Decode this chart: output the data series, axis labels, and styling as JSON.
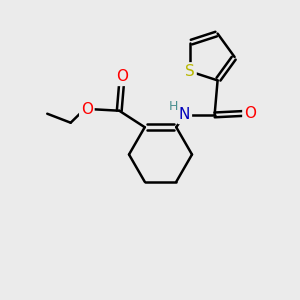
{
  "background_color": "#ebebeb",
  "bond_color": "#000000",
  "bond_width": 1.8,
  "atom_colors": {
    "S": "#b8b800",
    "O": "#ff0000",
    "N": "#0000bb",
    "H_label": "#4a9090",
    "C": "#000000"
  },
  "figsize": [
    3.0,
    3.0
  ],
  "dpi": 100
}
